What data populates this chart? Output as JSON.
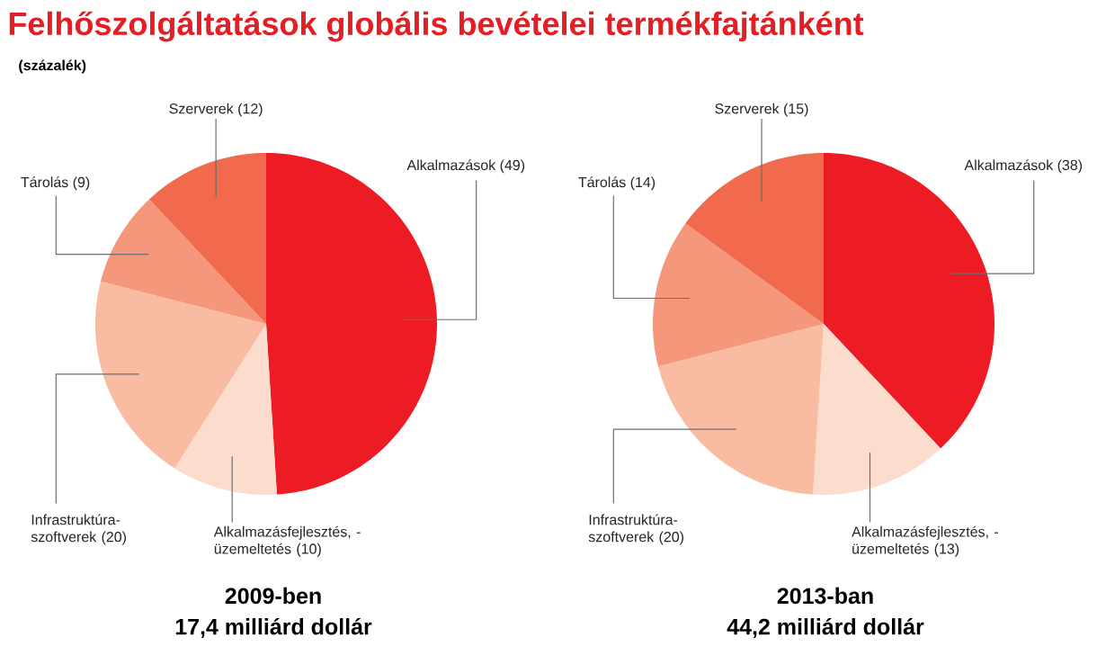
{
  "chart_data": [
    {
      "type": "pie",
      "title": "Felhőszolgáltatások globális bevételei termékfajtánként",
      "subtitle": "(százalék)",
      "categories": [
        "Alkalmazások (49)",
        "Alkalmazásfejlesztés, -üzemeltetés (10)",
        "Infrastruktúra-szoftverek (20)",
        "Tárolás (9)",
        "Szerverek (12)"
      ],
      "values": [
        49,
        10,
        20,
        9,
        12
      ],
      "colors": [
        "#ed1c24",
        "#fcdccd",
        "#f9bba2",
        "#f5977a",
        "#f26a4d"
      ],
      "xlabel": "2009-ben",
      "annotations": [
        "17,4 milliárd dollár"
      ]
    },
    {
      "type": "pie",
      "categories": [
        "Alkalmazások (38)",
        "Alkalmazásfejlesztés, -üzemeltetés (13)",
        "Infrastruktúra-szoftverek (20)",
        "Tárolás (14)",
        "Szerverek (15)"
      ],
      "values": [
        38,
        13,
        20,
        14,
        15
      ],
      "colors": [
        "#ed1c24",
        "#fcdccd",
        "#f9bba2",
        "#f5977a",
        "#f26a4d"
      ],
      "xlabel": "2013-ban",
      "annotations": [
        "44,2 milliárd dollár"
      ]
    }
  ]
}
